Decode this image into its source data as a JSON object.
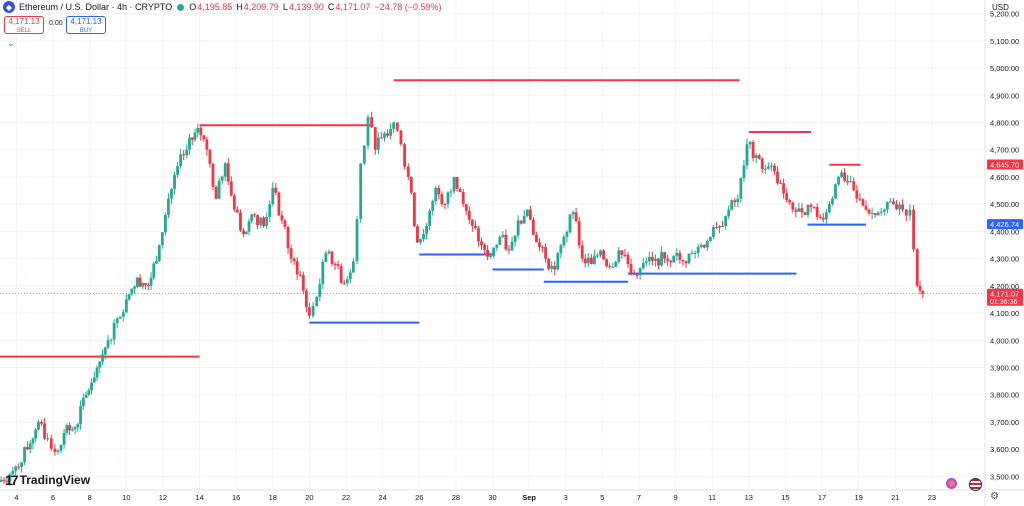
{
  "header": {
    "symbol_title": "Ethereum / U.S. Dollar · 4h · CRYPTO",
    "ohlc": [
      {
        "key": "O",
        "value": "4,195.85"
      },
      {
        "key": "H",
        "value": "4,209.79"
      },
      {
        "key": "L",
        "value": "4,139.90"
      },
      {
        "key": "C",
        "value": "4,171.07"
      }
    ],
    "change": "−24.78 (−0.59%)",
    "currency": "USD"
  },
  "trade": {
    "sell_price": "4,171.13",
    "sell_label": "SELL",
    "spread": "0.00",
    "buy_price": "4,171.13",
    "buy_label": "BUY"
  },
  "branding": {
    "name": "TradingView"
  },
  "colors": {
    "up": "#22ab94",
    "down": "#f23645",
    "support": "#2962ff",
    "resistance": "#f23645"
  },
  "chart_data": {
    "type": "candlestick",
    "title": "Ethereum / U.S. Dollar · 4h · CRYPTO",
    "ylim": [
      3450,
      5250
    ],
    "y_ticks": [
      3500,
      3600,
      3700,
      3800,
      3900,
      4000,
      4100,
      4200,
      4300,
      4400,
      4500,
      4600,
      4700,
      4800,
      4900,
      5000,
      5100,
      5200
    ],
    "y_tick_labels": [
      "3,500.00",
      "3,600.00",
      "3,700.00",
      "3,800.00",
      "3,900.00",
      "4,000.00",
      "4,100.00",
      "4,200.00",
      "4,300.00",
      "4,400.00",
      "4,500.00",
      "4,600.00",
      "4,700.00",
      "4,800.00",
      "4,900.00",
      "5,000.00",
      "5,100.00",
      "5,200.00"
    ],
    "x_days": [
      4,
      6,
      8,
      10,
      12,
      14,
      16,
      18,
      20,
      22,
      24,
      26,
      28,
      30,
      32,
      34,
      36,
      38,
      40,
      42,
      44,
      46,
      48,
      50,
      52
    ],
    "x_tick_labels": [
      "4",
      "6",
      "8",
      "10",
      "12",
      "14",
      "16",
      "18",
      "20",
      "22",
      "24",
      "26",
      "28",
      "30",
      "Sep",
      "3",
      "5",
      "7",
      "9",
      "11",
      "13",
      "15",
      "17",
      "19",
      "21",
      "23"
    ],
    "x_tick_days": [
      4,
      6,
      8,
      10,
      12,
      14,
      16,
      18,
      20,
      22,
      24,
      26,
      28,
      30,
      32,
      34,
      36,
      38,
      40,
      42,
      44,
      46,
      48,
      50,
      52,
      54
    ],
    "x_range_days": [
      3.1,
      56.9
    ],
    "anchors": [
      [
        3.0,
        3480
      ],
      [
        3.8,
        3520
      ],
      [
        4.6,
        3600
      ],
      [
        5.2,
        3700
      ],
      [
        5.7,
        3640
      ],
      [
        6.1,
        3590
      ],
      [
        6.6,
        3660
      ],
      [
        7.2,
        3680
      ],
      [
        7.8,
        3800
      ],
      [
        8.4,
        3900
      ],
      [
        9.0,
        4000
      ],
      [
        9.5,
        4080
      ],
      [
        10.0,
        4150
      ],
      [
        10.6,
        4230
      ],
      [
        11.2,
        4200
      ],
      [
        11.8,
        4350
      ],
      [
        12.3,
        4520
      ],
      [
        12.8,
        4640
      ],
      [
        13.3,
        4700
      ],
      [
        13.9,
        4780
      ],
      [
        14.4,
        4700
      ],
      [
        14.9,
        4520
      ],
      [
        15.4,
        4650
      ],
      [
        15.9,
        4480
      ],
      [
        16.4,
        4390
      ],
      [
        17.0,
        4460
      ],
      [
        17.5,
        4420
      ],
      [
        18.0,
        4560
      ],
      [
        18.5,
        4440
      ],
      [
        19.0,
        4300
      ],
      [
        19.5,
        4240
      ],
      [
        20.0,
        4090
      ],
      [
        20.4,
        4160
      ],
      [
        20.9,
        4320
      ],
      [
        21.4,
        4280
      ],
      [
        21.9,
        4210
      ],
      [
        22.4,
        4290
      ],
      [
        22.8,
        4650
      ],
      [
        23.2,
        4820
      ],
      [
        23.6,
        4700
      ],
      [
        24.1,
        4760
      ],
      [
        24.6,
        4800
      ],
      [
        25.0,
        4720
      ],
      [
        25.4,
        4600
      ],
      [
        25.9,
        4360
      ],
      [
        26.4,
        4420
      ],
      [
        26.9,
        4560
      ],
      [
        27.4,
        4500
      ],
      [
        27.9,
        4600
      ],
      [
        28.4,
        4500
      ],
      [
        28.9,
        4420
      ],
      [
        29.4,
        4350
      ],
      [
        29.9,
        4310
      ],
      [
        30.4,
        4380
      ],
      [
        30.9,
        4330
      ],
      [
        31.4,
        4440
      ],
      [
        31.9,
        4480
      ],
      [
        32.4,
        4360
      ],
      [
        32.9,
        4300
      ],
      [
        33.4,
        4260
      ],
      [
        33.9,
        4380
      ],
      [
        34.4,
        4470
      ],
      [
        34.9,
        4300
      ],
      [
        35.4,
        4280
      ],
      [
        35.9,
        4330
      ],
      [
        36.4,
        4270
      ],
      [
        36.9,
        4330
      ],
      [
        37.4,
        4280
      ],
      [
        37.9,
        4240
      ],
      [
        38.4,
        4290
      ],
      [
        38.9,
        4300
      ],
      [
        39.4,
        4300
      ],
      [
        39.9,
        4310
      ],
      [
        40.4,
        4290
      ],
      [
        40.9,
        4320
      ],
      [
        41.4,
        4350
      ],
      [
        41.9,
        4380
      ],
      [
        42.4,
        4420
      ],
      [
        42.9,
        4480
      ],
      [
        43.4,
        4520
      ],
      [
        43.9,
        4720
      ],
      [
        44.4,
        4680
      ],
      [
        44.9,
        4630
      ],
      [
        45.4,
        4620
      ],
      [
        45.9,
        4540
      ],
      [
        46.4,
        4480
      ],
      [
        46.9,
        4470
      ],
      [
        47.4,
        4490
      ],
      [
        47.9,
        4450
      ],
      [
        48.4,
        4500
      ],
      [
        48.9,
        4600
      ],
      [
        49.4,
        4580
      ],
      [
        49.9,
        4520
      ],
      [
        50.4,
        4480
      ],
      [
        50.9,
        4460
      ],
      [
        51.4,
        4480
      ],
      [
        51.9,
        4500
      ],
      [
        52.4,
        4480
      ],
      [
        52.8,
        4480
      ],
      [
        53.2,
        4200
      ],
      [
        53.5,
        4171
      ]
    ],
    "levels": [
      {
        "kind": "resistance",
        "price": 3940,
        "from_day": 3.1,
        "to_day": 14.0
      },
      {
        "kind": "resistance",
        "price": 4790,
        "from_day": 14.0,
        "to_day": 23.5
      },
      {
        "kind": "resistance",
        "price": 4955,
        "from_day": 24.6,
        "to_day": 43.5
      },
      {
        "kind": "resistance",
        "price": 4765,
        "from_day": 44.0,
        "to_day": 47.4
      },
      {
        "kind": "resistance",
        "price": 4645,
        "from_day": 48.4,
        "to_day": 50.1
      },
      {
        "kind": "support",
        "price": 4065,
        "from_day": 20.0,
        "to_day": 26.0
      },
      {
        "kind": "support",
        "price": 4315,
        "from_day": 26.0,
        "to_day": 30.0
      },
      {
        "kind": "support",
        "price": 4260,
        "from_day": 30.0,
        "to_day": 32.8
      },
      {
        "kind": "support",
        "price": 4215,
        "from_day": 32.8,
        "to_day": 37.4
      },
      {
        "kind": "support",
        "price": 4245,
        "from_day": 37.4,
        "to_day": 46.6
      },
      {
        "kind": "support",
        "price": 4425,
        "from_day": 47.2,
        "to_day": 50.4
      }
    ],
    "price_tags": [
      {
        "price": 4645.7,
        "label": "4,645.70",
        "color": "#f23645"
      },
      {
        "price": 4426.74,
        "label": "4,426.74",
        "color": "#2962ff"
      },
      {
        "price": 4171.07,
        "label": "4,171.07",
        "sub": "01:36:36",
        "color": "#f23645"
      }
    ],
    "last_price": 4171.07
  }
}
